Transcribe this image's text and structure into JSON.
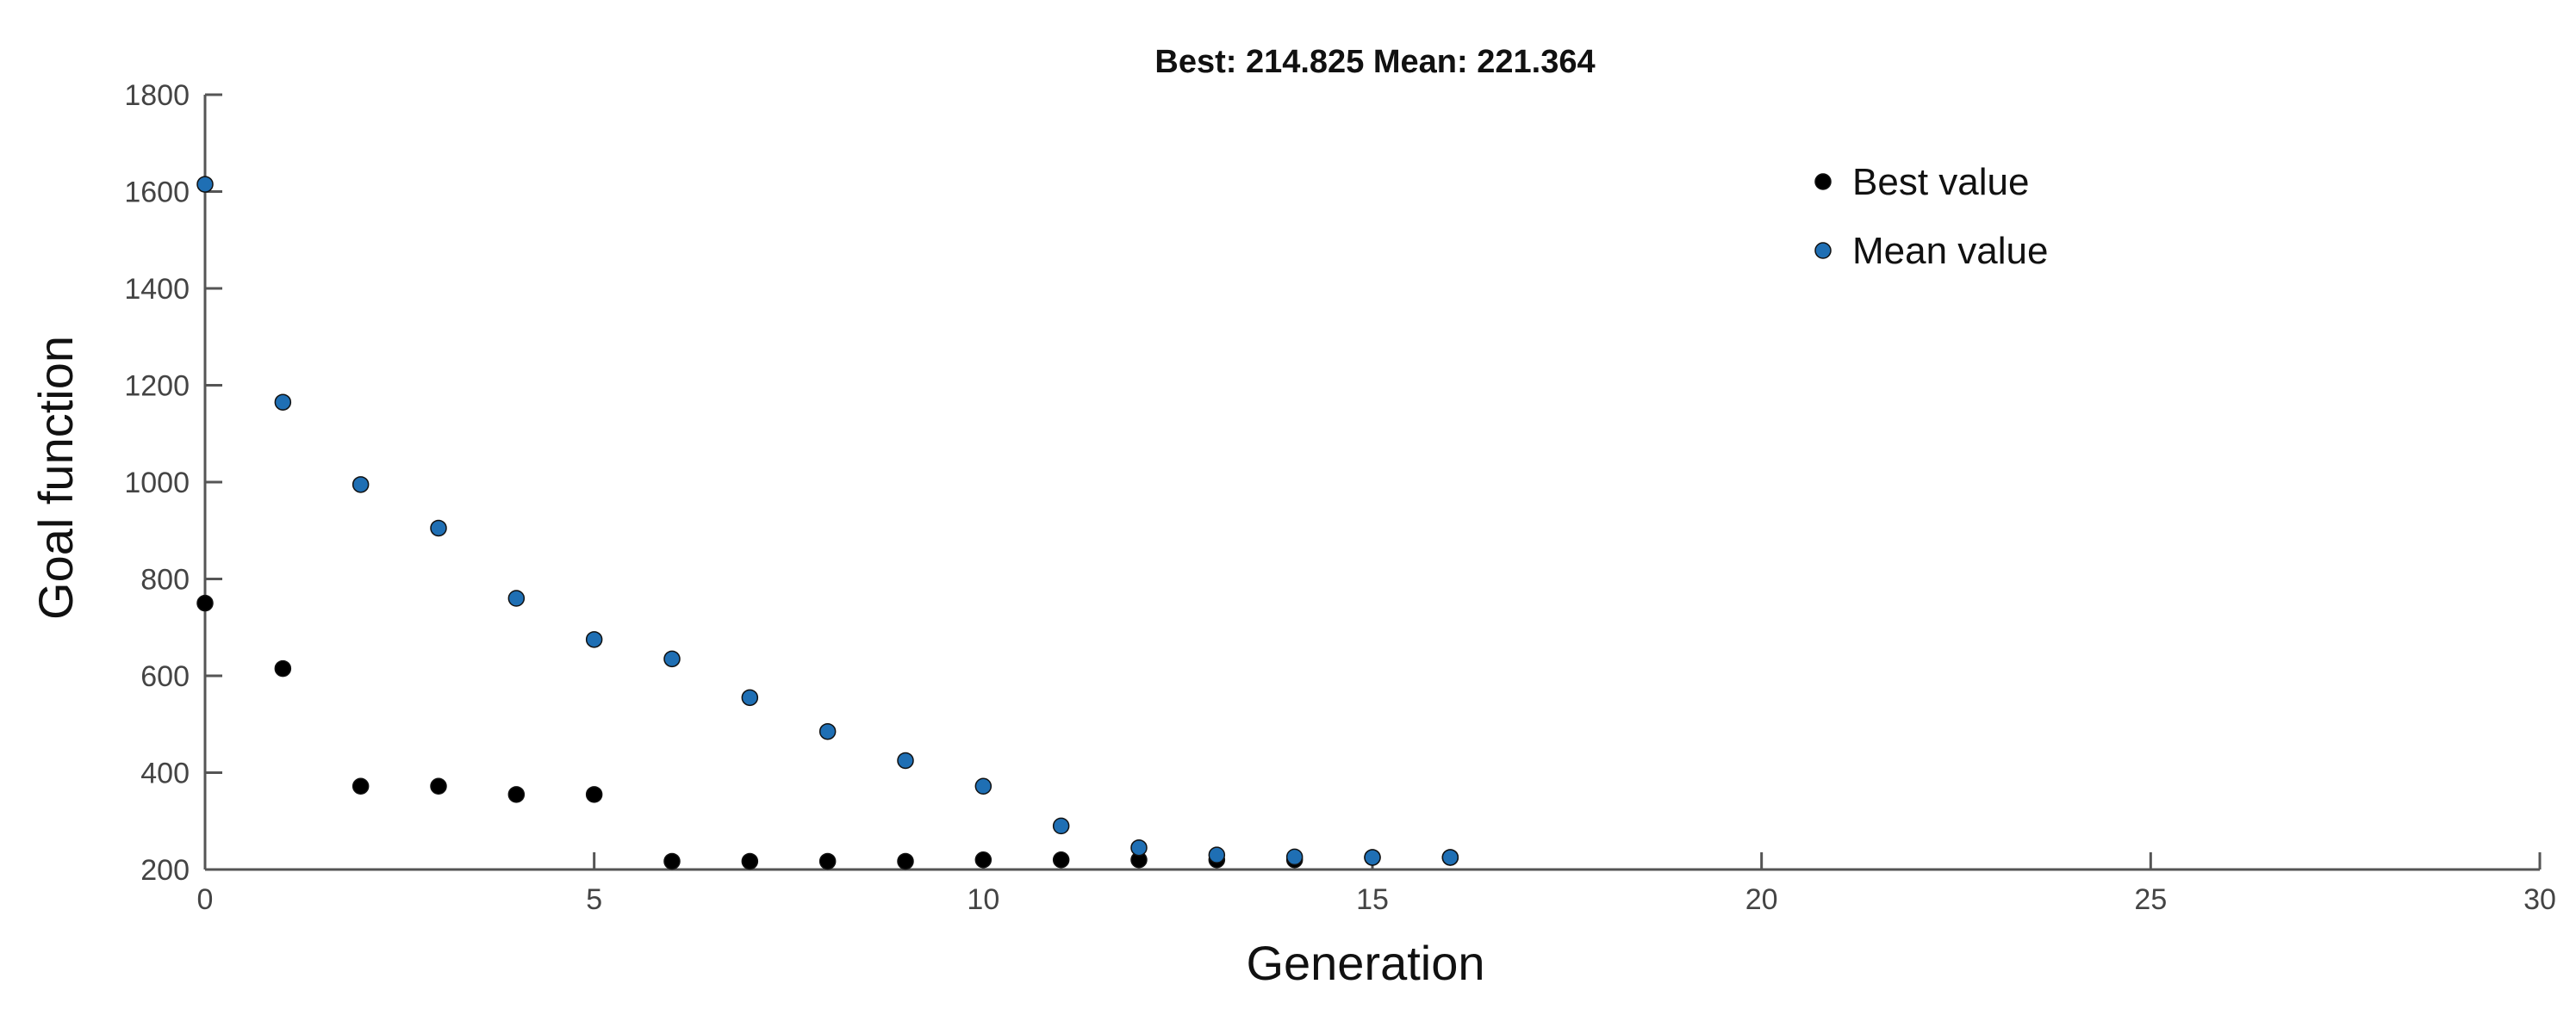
{
  "chart_data": {
    "type": "scatter",
    "title": "Best: 214.825 Mean: 221.364",
    "xlabel": "Generation",
    "ylabel": "Goal function",
    "xlim": [
      0,
      30
    ],
    "ylim": [
      200,
      1800
    ],
    "xticks": [
      0,
      5,
      10,
      15,
      20,
      25,
      30
    ],
    "yticks": [
      200,
      400,
      600,
      800,
      1000,
      1200,
      1400,
      1600,
      1800
    ],
    "grid": false,
    "legend_position": "top-right",
    "series": [
      {
        "name": "Best value",
        "color": "#000000",
        "x": [
          0,
          1,
          2,
          3,
          4,
          5,
          6,
          7,
          8,
          9,
          10,
          11,
          12,
          13,
          14,
          15,
          16
        ],
        "y": [
          750,
          615,
          372,
          372,
          355,
          355,
          217,
          217,
          217,
          217,
          220,
          220,
          220,
          220,
          220,
          225,
          225
        ]
      },
      {
        "name": "Mean value",
        "color": "#1f6fb4",
        "x": [
          0,
          1,
          2,
          3,
          4,
          5,
          6,
          7,
          8,
          9,
          10,
          11,
          12,
          13,
          14,
          15,
          16
        ],
        "y": [
          1615,
          1165,
          995,
          905,
          760,
          675,
          635,
          555,
          485,
          425,
          372,
          290,
          245,
          230,
          226,
          225,
          225
        ]
      }
    ]
  }
}
